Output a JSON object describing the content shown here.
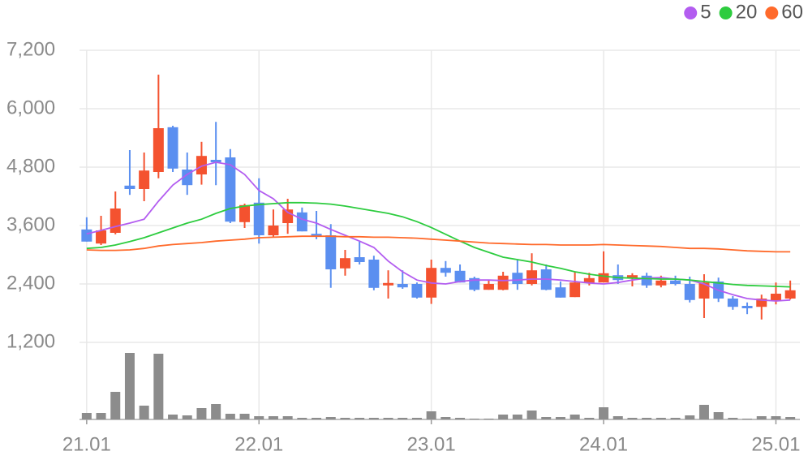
{
  "chart_data": {
    "type": "candlestick",
    "categories": [
      "21.01",
      null,
      null,
      null,
      null,
      null,
      null,
      null,
      null,
      null,
      null,
      null,
      "22.01",
      null,
      null,
      null,
      null,
      null,
      null,
      null,
      null,
      null,
      null,
      null,
      "23.01",
      null,
      null,
      null,
      null,
      null,
      null,
      null,
      null,
      null,
      null,
      null,
      "24.01",
      null,
      null,
      null,
      null,
      null,
      null,
      null,
      null,
      null,
      null,
      null,
      "25.01",
      null
    ],
    "open": [
      3520,
      3230,
      3450,
      4420,
      4350,
      4700,
      5620,
      4750,
      4650,
      4950,
      5000,
      3670,
      4070,
      3400,
      3650,
      3870,
      3430,
      3400,
      2720,
      2950,
      2900,
      2370,
      2400,
      2400,
      2120,
      2730,
      2670,
      2520,
      2280,
      2280,
      2630,
      2400,
      2700,
      2330,
      2130,
      2420,
      2430,
      2580,
      2520,
      2570,
      2370,
      2470,
      2400,
      2100,
      2450,
      2100,
      1950,
      1930,
      2050,
      2100
    ],
    "high": [
      3770,
      3800,
      4300,
      5150,
      5100,
      6700,
      5650,
      5100,
      5320,
      5730,
      5170,
      4050,
      4570,
      3930,
      4150,
      3970,
      3900,
      3630,
      3100,
      3270,
      2980,
      2680,
      2680,
      2430,
      2900,
      2870,
      2800,
      2550,
      2480,
      2650,
      2900,
      3030,
      2800,
      2450,
      2650,
      2630,
      3070,
      2800,
      2620,
      2630,
      2570,
      2570,
      2550,
      2600,
      2530,
      2150,
      2020,
      2180,
      2430,
      2470
    ],
    "low": [
      3270,
      3200,
      3420,
      4230,
      4100,
      4570,
      4700,
      4230,
      4440,
      4430,
      3650,
      3550,
      3230,
      3370,
      3430,
      3480,
      3320,
      2320,
      2570,
      2800,
      2270,
      2100,
      2300,
      2100,
      1990,
      2550,
      2430,
      2250,
      2280,
      2270,
      2280,
      2370,
      2270,
      2120,
      2130,
      2370,
      2430,
      2400,
      2350,
      2320,
      2330,
      2370,
      2020,
      1700,
      2030,
      1870,
      1780,
      1670,
      1980,
      2080
    ],
    "close": [
      3270,
      3500,
      3950,
      4350,
      4730,
      5600,
      4770,
      4430,
      5030,
      4900,
      3680,
      4020,
      3400,
      3600,
      3930,
      3480,
      3370,
      2700,
      2930,
      2850,
      2320,
      2420,
      2330,
      2120,
      2730,
      2630,
      2430,
      2280,
      2400,
      2570,
      2400,
      2680,
      2280,
      2120,
      2430,
      2520,
      2620,
      2480,
      2580,
      2370,
      2470,
      2400,
      2070,
      2430,
      2100,
      1930,
      1900,
      2100,
      2200,
      2270
    ],
    "up_color": "#f4522f",
    "down_color": "#5b8ff0",
    "volume": [
      8,
      8,
      34,
      82,
      17,
      81,
      6,
      5,
      14,
      19,
      7,
      7,
      4,
      4,
      4,
      2,
      2,
      3,
      2,
      2,
      2,
      2,
      2,
      2,
      10,
      3,
      2,
      1,
      1,
      6,
      6,
      11,
      3,
      3,
      6,
      2,
      15,
      4,
      2,
      2,
      2,
      2,
      5,
      18,
      9,
      2,
      1,
      4,
      4,
      3
    ],
    "volume_color": "#8c8c8c",
    "volume_lim": [
      0,
      100
    ],
    "series": [
      {
        "name": "5",
        "color": "#b35df0",
        "values": [
          3430,
          3500,
          3580,
          3650,
          3730,
          4100,
          4430,
          4650,
          4820,
          4900,
          4850,
          4650,
          4320,
          4150,
          3870,
          3730,
          3650,
          3520,
          3400,
          3280,
          3150,
          2870,
          2650,
          2480,
          2420,
          2400,
          2450,
          2480,
          2480,
          2470,
          2480,
          2500,
          2500,
          2480,
          2450,
          2420,
          2400,
          2430,
          2480,
          2520,
          2530,
          2500,
          2480,
          2400,
          2270,
          2180,
          2100,
          2070,
          2050,
          2070
        ]
      },
      {
        "name": "20",
        "color": "#2dcc3f",
        "values": [
          3130,
          3150,
          3200,
          3270,
          3350,
          3450,
          3550,
          3650,
          3730,
          3850,
          3950,
          4000,
          4030,
          4050,
          4070,
          4070,
          4060,
          4040,
          4000,
          3950,
          3900,
          3850,
          3780,
          3680,
          3560,
          3420,
          3280,
          3150,
          3050,
          2950,
          2900,
          2850,
          2780,
          2720,
          2650,
          2600,
          2560,
          2530,
          2520,
          2510,
          2500,
          2500,
          2480,
          2450,
          2420,
          2390,
          2370,
          2360,
          2350,
          2340
        ]
      },
      {
        "name": "60",
        "color": "#ff6a2b",
        "values": [
          3100,
          3090,
          3090,
          3100,
          3130,
          3180,
          3210,
          3230,
          3250,
          3280,
          3300,
          3320,
          3350,
          3360,
          3370,
          3380,
          3380,
          3380,
          3370,
          3370,
          3360,
          3360,
          3350,
          3340,
          3320,
          3300,
          3280,
          3260,
          3240,
          3230,
          3220,
          3210,
          3210,
          3200,
          3200,
          3200,
          3210,
          3200,
          3190,
          3180,
          3170,
          3150,
          3130,
          3130,
          3120,
          3100,
          3080,
          3070,
          3060,
          3060
        ]
      }
    ],
    "ylim": [
      0,
      7200
    ],
    "yticks": [
      {
        "value": 1200,
        "label": "1,200"
      },
      {
        "value": 2400,
        "label": "2,400"
      },
      {
        "value": 3600,
        "label": "3,600"
      },
      {
        "value": 4800,
        "label": "4,800"
      },
      {
        "value": 6000,
        "label": "6,000"
      },
      {
        "value": 7200,
        "label": "7,200"
      }
    ],
    "grid": true,
    "legend": "top-right"
  }
}
